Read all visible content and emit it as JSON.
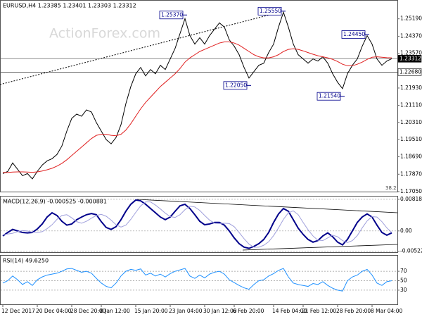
{
  "chart_data": [
    {
      "type": "line",
      "title": "EURUSD,H4 1.23385 1.23401 1.23303 1.23312",
      "watermark": "ActionForex.com",
      "level_note": 38.2,
      "categories": [
        "12 Dec 2017",
        null,
        null,
        null,
        null,
        null,
        null,
        "20 Dec 04:00",
        null,
        null,
        null,
        null,
        null,
        null,
        "28 Dec 20:00",
        null,
        null,
        null,
        null,
        null,
        "8 Jan 12:00",
        null,
        null,
        null,
        null,
        null,
        null,
        "15 Jan 20:00",
        null,
        null,
        null,
        null,
        null,
        null,
        "23 Jan 04:00",
        null,
        null,
        null,
        null,
        null,
        null,
        "30 Jan 12:00",
        null,
        null,
        null,
        null,
        null,
        "6 Feb 20:00",
        null,
        null,
        null,
        null,
        null,
        null,
        null,
        "14 Feb 04:00",
        null,
        null,
        null,
        null,
        null,
        "21 Feb 12:00",
        null,
        null,
        null,
        null,
        null,
        null,
        "28 Feb 20:00",
        null,
        null,
        null,
        null,
        null,
        null,
        "8 Mar 04:00",
        null,
        null,
        null,
        null
      ],
      "series": [
        {
          "color": "#000000",
          "values": [
            1.179,
            1.18,
            1.184,
            1.181,
            1.178,
            1.179,
            1.1765,
            1.18,
            1.183,
            1.185,
            1.186,
            1.188,
            1.192,
            1.199,
            1.205,
            1.207,
            1.206,
            1.209,
            1.208,
            1.203,
            1.199,
            1.195,
            1.193,
            1.196,
            1.202,
            1.212,
            1.22,
            1.226,
            1.229,
            1.225,
            1.228,
            1.226,
            1.23,
            1.228,
            1.233,
            1.238,
            1.245,
            1.252,
            1.244,
            1.24,
            1.243,
            1.24,
            1.244,
            1.247,
            1.25,
            1.248,
            1.242,
            1.239,
            1.235,
            1.229,
            1.224,
            1.227,
            1.23,
            1.231,
            1.236,
            1.24,
            1.248,
            1.255,
            1.248,
            1.24,
            1.235,
            1.233,
            1.231,
            1.233,
            1.232,
            1.234,
            1.231,
            1.226,
            1.222,
            1.219,
            1.226,
            1.23,
            1.233,
            1.239,
            1.244,
            1.24,
            1.233,
            1.23,
            1.232,
            1.2331
          ]
        },
        {
          "color": "#e02020",
          "values": [
            1.1795,
            1.1795,
            1.1797,
            1.1798,
            1.1798,
            1.1797,
            1.1796,
            1.1798,
            1.1802,
            1.1808,
            1.1815,
            1.1825,
            1.1838,
            1.1855,
            1.1875,
            1.1895,
            1.1915,
            1.1935,
            1.1955,
            1.197,
            1.1975,
            1.1975,
            1.197,
            1.1968,
            1.1975,
            1.1995,
            1.2025,
            1.206,
            1.2095,
            1.2125,
            1.215,
            1.2175,
            1.22,
            1.222,
            1.224,
            1.226,
            1.2285,
            1.2315,
            1.2335,
            1.235,
            1.2365,
            1.2375,
            1.2385,
            1.2395,
            1.2405,
            1.241,
            1.241,
            1.2405,
            1.2395,
            1.238,
            1.2365,
            1.235,
            1.234,
            1.2335,
            1.2335,
            1.234,
            1.235,
            1.2365,
            1.2375,
            1.2378,
            1.2375,
            1.2368,
            1.236,
            1.2352,
            1.2345,
            1.234,
            1.2335,
            1.2328,
            1.2318,
            1.2305,
            1.2298,
            1.2298,
            1.2305,
            1.2315,
            1.2328,
            1.2338,
            1.234,
            1.2338,
            1.2336,
            1.2335
          ]
        }
      ],
      "ylim": [
        1.1705,
        1.2601
      ],
      "yticks": [
        {
          "value": 1.1705,
          "label": "1.17050"
        },
        {
          "value": 1.1787,
          "label": "1.17870"
        },
        {
          "value": 1.1869,
          "label": "1.18690"
        },
        {
          "value": 1.1951,
          "label": "1.19510"
        },
        {
          "value": 1.2031,
          "label": "1.20310"
        },
        {
          "value": 1.2111,
          "label": "1.21110"
        },
        {
          "value": 1.2193,
          "label": "1.21930"
        },
        {
          "value": 1.2357,
          "label": "1.23570"
        },
        {
          "value": 1.2437,
          "label": "1.24370"
        },
        {
          "value": 1.2519,
          "label": "1.25190"
        }
      ],
      "annotations": [
        {
          "x": 37,
          "value": 1.2537,
          "label": "1.25370"
        },
        {
          "x": 57,
          "value": 1.2555,
          "label": "1.25550"
        },
        {
          "x": 74,
          "value": 1.2445,
          "label": "1.24450"
        },
        {
          "x": 50,
          "value": 1.2205,
          "label": "1.22050"
        },
        {
          "x": 69,
          "value": 1.2154,
          "label": "1.21540"
        }
      ],
      "price_levels": [
        {
          "value": 1.23312,
          "color": "#808080"
        },
        {
          "value": 1.2268,
          "label": "1.22680",
          "color": "#333333"
        }
      ]
    },
    {
      "type": "line",
      "title": "MACD(12,26,9) -0.000525 -0.000881",
      "series": [
        {
          "color": "#00008b",
          "values": [
            -0.0013,
            -0.0004,
            0.0004,
            0.0,
            -0.0004,
            -0.0005,
            -0.0004,
            0.0005,
            0.0018,
            0.0036,
            0.0047,
            0.004,
            0.0025,
            0.0015,
            0.0018,
            0.0029,
            0.0036,
            0.0042,
            0.0045,
            0.0042,
            0.0024,
            0.0009,
            0.0004,
            0.0011,
            0.0029,
            0.0051,
            0.0069,
            0.008,
            0.0078,
            0.0069,
            0.0058,
            0.0047,
            0.0036,
            0.0029,
            0.0036,
            0.0051,
            0.0065,
            0.0069,
            0.0058,
            0.0042,
            0.0025,
            0.0016,
            0.0018,
            0.0022,
            0.0022,
            0.0015,
            0.0,
            -0.0018,
            -0.0033,
            -0.0042,
            -0.0045,
            -0.004,
            -0.0033,
            -0.0022,
            -0.0004,
            0.0022,
            0.0044,
            0.0058,
            0.0051,
            0.0029,
            0.0007,
            -0.0009,
            -0.0022,
            -0.0029,
            -0.0025,
            -0.0013,
            -0.0005,
            -0.0015,
            -0.0029,
            -0.0036,
            -0.0022,
            0.0,
            0.0022,
            0.0036,
            0.0044,
            0.0036,
            0.0015,
            -0.0004,
            -0.0011,
            -0.0005
          ]
        },
        {
          "color": "#a0a0dc",
          "values": [
            -0.001,
            -0.0008,
            -0.0006,
            -0.0002,
            0.0001,
            0.0,
            -0.0003,
            -0.0004,
            -0.0002,
            0.0006,
            0.0016,
            0.003,
            0.004,
            0.0042,
            0.0034,
            0.0024,
            0.002,
            0.0025,
            0.0033,
            0.004,
            0.0043,
            0.0038,
            0.0028,
            0.0016,
            0.001,
            0.0015,
            0.003,
            0.0048,
            0.0065,
            0.0075,
            0.0075,
            0.0067,
            0.0057,
            0.0046,
            0.0037,
            0.0035,
            0.0042,
            0.0055,
            0.0064,
            0.0062,
            0.0053,
            0.004,
            0.0028,
            0.002,
            0.0019,
            0.002,
            0.0019,
            0.0011,
            -0.0004,
            -0.002,
            -0.0034,
            -0.0042,
            -0.0042,
            -0.0037,
            -0.0028,
            -0.0012,
            0.0008,
            0.003,
            0.0047,
            0.0052,
            0.0042,
            0.0022,
            0.0003,
            -0.0013,
            -0.0024,
            -0.0025,
            -0.0018,
            -0.0011,
            -0.0015,
            -0.0025,
            -0.003,
            -0.0025,
            -0.0012,
            0.0008,
            0.0026,
            0.0037,
            0.0036,
            0.0024,
            0.0008,
            -0.0004
          ]
        }
      ],
      "ylim": [
        -0.0055,
        0.0089
      ],
      "yticks": [
        0.008182,
        {
          "value": 0,
          "label": "0.00"
        },
        -0.005223
      ]
    },
    {
      "type": "line",
      "title": "RSI(14) 49.6250",
      "series": [
        {
          "color": "#1e90ff",
          "values": [
            45,
            50,
            60,
            52,
            42,
            48,
            40,
            52,
            58,
            62,
            64,
            66,
            70,
            75,
            76,
            72,
            68,
            70,
            66,
            55,
            45,
            38,
            35,
            45,
            60,
            70,
            74,
            72,
            75,
            62,
            66,
            60,
            64,
            58,
            65,
            70,
            73,
            76,
            60,
            55,
            62,
            56,
            64,
            68,
            70,
            64,
            52,
            46,
            40,
            35,
            32,
            42,
            50,
            52,
            60,
            65,
            72,
            76,
            58,
            45,
            42,
            40,
            38,
            44,
            42,
            48,
            40,
            34,
            30,
            28,
            50,
            58,
            62,
            70,
            74,
            62,
            45,
            40,
            48,
            50
          ]
        }
      ],
      "ylim": [
        0,
        100
      ],
      "yticks": [
        70,
        50,
        30
      ]
    }
  ]
}
